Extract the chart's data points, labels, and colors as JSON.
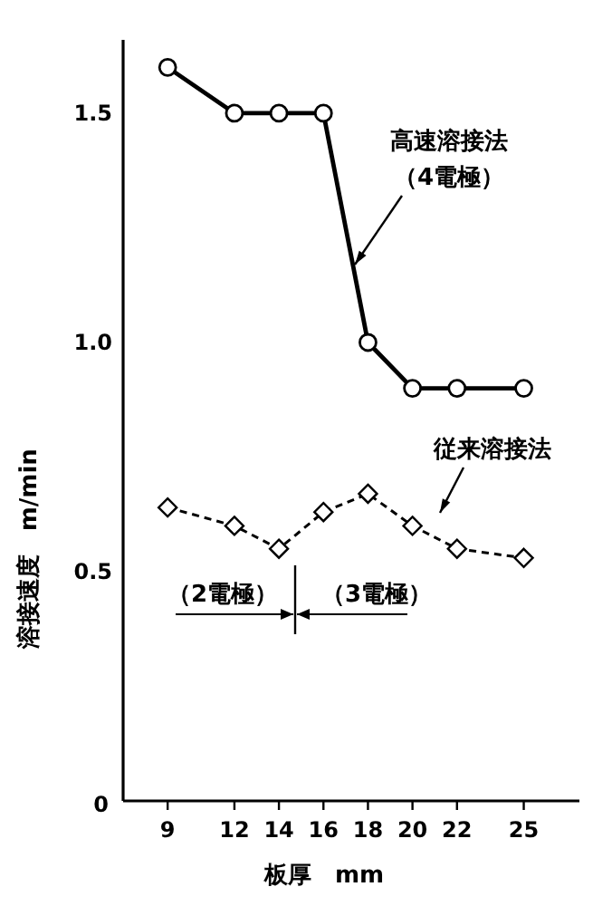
{
  "chart_data": {
    "type": "line",
    "xlabel": "板厚　mm",
    "ylabel": "溶接速度　m/min",
    "x": [
      9,
      12,
      14,
      16,
      18,
      20,
      22,
      25
    ],
    "series": [
      {
        "name": "高速溶接法",
        "color": "#000000",
        "marker": "circle",
        "line_style": "solid",
        "values": [
          1.6,
          1.5,
          1.5,
          1.5,
          1.0,
          0.9,
          0.9,
          0.9
        ]
      },
      {
        "name": "従来溶接法",
        "color": "#000000",
        "marker": "diamond",
        "line_style": "dashed",
        "values": [
          0.64,
          0.6,
          0.55,
          0.63,
          0.67,
          0.6,
          0.55,
          0.53
        ]
      }
    ],
    "annotations": [
      "（4電極）",
      "（2電極）",
      "（3電極）"
    ],
    "xlim": [
      7,
      27.5
    ],
    "ylim": [
      0,
      1.66
    ],
    "xticks": [
      9,
      12,
      14,
      16,
      18,
      20,
      22,
      25
    ],
    "yticks": [
      0,
      0.5,
      {
        "value": 1,
        "label": "1.0"
      },
      1.5
    ],
    "grid": false,
    "legend": false
  }
}
